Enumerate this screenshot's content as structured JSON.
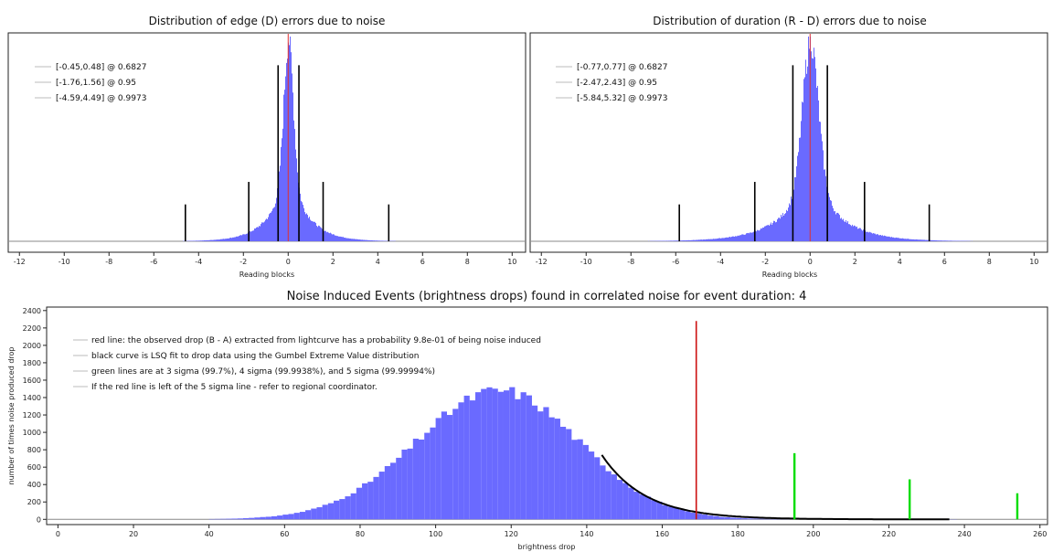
{
  "chart_data": [
    {
      "type": "bar",
      "title": "Distribution of edge (D) errors due to noise",
      "xlabel": "Reading blocks",
      "ylabel": "",
      "xlim": [
        -12.5,
        10.6
      ],
      "xticks": [
        "-12",
        "-10",
        "-8",
        "-6",
        "-4",
        "-2",
        "0",
        "2",
        "4",
        "6",
        "8",
        "10"
      ],
      "histogram_color": "#6a6aff",
      "center_line_color": "#e03030",
      "distribution": {
        "center": 0.0,
        "sigma_core": 0.22,
        "sigma_tail": 0.85,
        "tail_weight": 0.35
      },
      "sigma_lines": [
        {
          "x": -4.59,
          "height": 0.18
        },
        {
          "x": -1.76,
          "height": 0.29
        },
        {
          "x": -0.45,
          "height": 0.86
        },
        {
          "x": 0.48,
          "height": 0.86
        },
        {
          "x": 1.56,
          "height": 0.29
        },
        {
          "x": 4.49,
          "height": 0.18
        }
      ],
      "legend": [
        {
          "label": "[-0.45,0.48] @ 0.6827"
        },
        {
          "label": "[-1.76,1.56] @ 0.95"
        },
        {
          "label": "[-4.59,4.49] @ 0.9973"
        }
      ],
      "legend_position": "top-left"
    },
    {
      "type": "bar",
      "title": "Distribution of duration (R - D) errors due to noise",
      "xlabel": "Reading blocks",
      "ylabel": "",
      "xlim": [
        -12.5,
        10.6
      ],
      "xticks": [
        "-12",
        "-10",
        "-8",
        "-6",
        "-4",
        "-2",
        "0",
        "2",
        "4",
        "6",
        "8",
        "10"
      ],
      "histogram_color": "#6a6aff",
      "center_line_color": "#e03030",
      "distribution": {
        "center": 0.0,
        "sigma_core": 0.36,
        "sigma_tail": 1.3,
        "tail_weight": 0.33
      },
      "sigma_lines": [
        {
          "x": -5.84,
          "height": 0.18
        },
        {
          "x": -2.47,
          "height": 0.29
        },
        {
          "x": -0.77,
          "height": 0.86
        },
        {
          "x": 0.77,
          "height": 0.86
        },
        {
          "x": 2.43,
          "height": 0.29
        },
        {
          "x": 5.32,
          "height": 0.18
        }
      ],
      "legend": [
        {
          "label": "[-0.77,0.77] @ 0.6827"
        },
        {
          "label": "[-2.47,2.43] @ 0.95"
        },
        {
          "label": "[-5.84,5.32] @ 0.9973"
        }
      ],
      "legend_position": "top-left"
    },
    {
      "type": "bar",
      "title": "Noise Induced Events (brightness drops) found in correlated noise for event duration: 4",
      "xlabel": "brightness drop",
      "ylabel": "number of times noise produced drop",
      "xlim": [
        -3,
        262
      ],
      "ylim": [
        -60,
        2440
      ],
      "xticks": [
        "0",
        "20",
        "40",
        "60",
        "80",
        "100",
        "120",
        "140",
        "160",
        "180",
        "200",
        "220",
        "240",
        "260"
      ],
      "yticks": [
        "0",
        "200",
        "400",
        "600",
        "800",
        "1000",
        "1200",
        "1400",
        "1600",
        "1800",
        "2000",
        "2200",
        "2400"
      ],
      "histogram_color": "#6a6aff",
      "bin_width": 1.5,
      "histogram": {
        "peak_x": 117,
        "peak_y": 1480,
        "sigma_left": 22,
        "sigma_right": 21,
        "x_min": 40,
        "x_max": 237
      },
      "fit_curve": {
        "name": "black curve",
        "x_start": 144,
        "x_end": 236,
        "y_start": 740,
        "decay": 11.5,
        "color": "#000000"
      },
      "red_line": {
        "x": 169,
        "y": 2280,
        "color": "#cc1111"
      },
      "green_lines": [
        {
          "x": 195,
          "y": 760
        },
        {
          "x": 225.5,
          "y": 460
        },
        {
          "x": 254,
          "y": 300
        }
      ],
      "green_color": "#00dd00",
      "legend": [
        {
          "label": "red line: the observed drop (B - A) extracted from lightcurve has a probability 9.8e-01 of being noise induced"
        },
        {
          "label": "black curve is LSQ fit to drop data using the Gumbel Extreme Value distribution"
        },
        {
          "label": "green lines are at 3 sigma (99.7%), 4 sigma (99.9938%), and 5 sigma (99.99994%)"
        },
        {
          "label": "If the red line is left of the 5 sigma line - refer to regional coordinator."
        }
      ],
      "legend_position": "top-left"
    }
  ]
}
